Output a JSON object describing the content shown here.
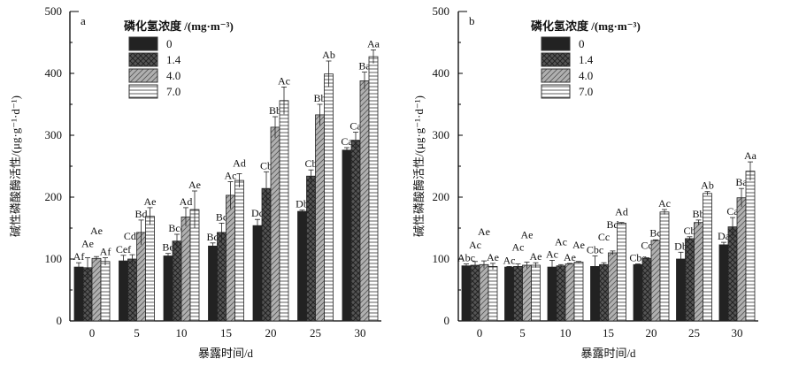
{
  "chart_data": [
    {
      "type": "bar",
      "panel_label": "a",
      "xlabel": "暴露时间/d",
      "ylabel": "碱性磷酸酶活性/(μg·g⁻¹·d⁻¹)",
      "ylim": [
        0,
        500
      ],
      "yticks": [
        "0",
        "100",
        "200",
        "300",
        "400",
        "500"
      ],
      "categories": [
        "0",
        "5",
        "10",
        "15",
        "20",
        "25",
        "30"
      ],
      "legend_title": "磷化氢浓度 /(mg·m⁻³)",
      "legend_position": "top-left",
      "series": [
        {
          "name": "0",
          "values": [
            87,
            97,
            105,
            121,
            154,
            177,
            276
          ],
          "errors": [
            7,
            9,
            4,
            5,
            10,
            2,
            4
          ],
          "labels": [
            "Af",
            "Cef",
            "Be",
            "Bd",
            "Dc",
            "Db",
            "Ca"
          ]
        },
        {
          "name": "1.4",
          "values": [
            86,
            100,
            129,
            143,
            214,
            234,
            292
          ],
          "errors": [
            16,
            7,
            11,
            15,
            27,
            10,
            13
          ],
          "labels": [
            "Ae",
            "Cde",
            "Bcd",
            "Bc",
            "Cb",
            "Cb",
            "Ca"
          ]
        },
        {
          "name": "4.0",
          "values": [
            101,
            143,
            168,
            203,
            313,
            333,
            388
          ],
          "errors": [
            3,
            20,
            15,
            22,
            17,
            17,
            14
          ],
          "labels": [
            "Ae",
            "Bd",
            "Ad",
            "Ac",
            "Bb",
            "Bb",
            "Ba"
          ]
        },
        {
          "name": "7.0",
          "values": [
            96,
            169,
            180,
            227,
            356,
            399,
            427
          ],
          "errors": [
            6,
            14,
            30,
            11,
            22,
            21,
            11
          ],
          "labels": [
            "Af",
            "Ae",
            "Ae",
            "Ad",
            "Ac",
            "Ab",
            "Aa"
          ]
        }
      ]
    },
    {
      "type": "bar",
      "panel_label": "b",
      "xlabel": "暴露时间/d",
      "ylabel": "碱性磷酸酶活性/(μg·g⁻¹·d⁻¹)",
      "ylim": [
        0,
        500
      ],
      "yticks": [
        "0",
        "100",
        "200",
        "300",
        "400",
        "500"
      ],
      "categories": [
        "0",
        "5",
        "10",
        "15",
        "20",
        "25",
        "30"
      ],
      "legend_title": "磷化氢浓度 /(mg·m⁻³)",
      "legend_position": "top-left",
      "series": [
        {
          "name": "0",
          "values": [
            89,
            87,
            87,
            88,
            91,
            100,
            123
          ],
          "errors": [
            3,
            1,
            11,
            17,
            1,
            11,
            4
          ],
          "labels": [
            "Abc",
            "Ac",
            "Ac",
            "Cbc",
            "Cbc",
            "Db",
            "Da"
          ]
        },
        {
          "name": "1.4",
          "values": [
            90,
            88,
            89,
            91,
            101,
            133,
            152
          ],
          "errors": [
            6,
            4,
            2,
            3,
            1,
            3,
            15
          ],
          "labels": [
            "Ac",
            "Ac",
            "Ac",
            "Cc",
            "Cc",
            "Cb",
            "Ca"
          ]
        },
        {
          "name": "4.0",
          "values": [
            91,
            90,
            92,
            110,
            130,
            159,
            199
          ],
          "errors": [
            6,
            5,
            1,
            3,
            1,
            4,
            15
          ],
          "labels": [
            "Ae",
            "Ae",
            "Ae",
            "Bd",
            "Bc",
            "Bb",
            "Ba"
          ]
        },
        {
          "name": "7.0",
          "values": [
            88,
            90,
            95,
            158,
            176,
            206,
            242
          ],
          "errors": [
            5,
            4,
            1,
            1,
            4,
            3,
            15
          ],
          "labels": [
            "Ae",
            "Ae",
            "Ae",
            "Ad",
            "Ac",
            "Ab",
            "Aa"
          ]
        }
      ]
    }
  ]
}
